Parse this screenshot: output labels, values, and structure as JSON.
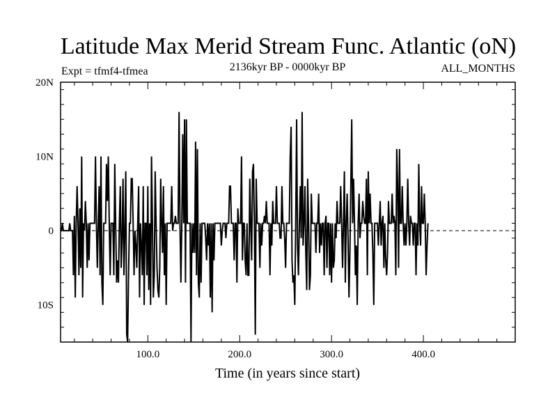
{
  "chart_data": {
    "type": "line",
    "title": "Latitude Max Merid Stream Func. Atlantic (oN)",
    "subtitle_left": "Expt = tfmf4-tfmea",
    "subtitle_center": "2136kyr BP - 0000kyr BP",
    "subtitle_right": "ALL_MONTHS",
    "xlabel": "Time (in years since start)",
    "ylabel": "",
    "xlim": [
      5,
      500
    ],
    "ylim": [
      -15,
      20
    ],
    "x_ticks": [
      {
        "value": 100,
        "label": "100.0"
      },
      {
        "value": 200,
        "label": "200.0"
      },
      {
        "value": 300,
        "label": "300.0"
      },
      {
        "value": 400,
        "label": "400.0"
      }
    ],
    "y_ticks": [
      {
        "value": 20,
        "label": "20N"
      },
      {
        "value": 10,
        "label": "10N"
      },
      {
        "value": 0,
        "label": "0"
      },
      {
        "value": -10,
        "label": "10S"
      }
    ],
    "zero_line": "dashed",
    "series": [
      {
        "color": "#000000",
        "x_start": 5,
        "x_step": 1,
        "values": [
          0,
          0,
          1,
          0,
          0,
          0,
          0,
          0,
          0,
          0,
          1,
          0,
          0,
          0,
          -6,
          2,
          -9,
          1,
          6,
          1,
          -6,
          3,
          -5,
          10,
          -9,
          1,
          0,
          4,
          1,
          -5,
          1,
          -4,
          1,
          1,
          1,
          1,
          1,
          1,
          10,
          1,
          -5,
          1,
          6,
          -6,
          10,
          -7,
          -10,
          1,
          1,
          1,
          9,
          4,
          10,
          1,
          -6,
          1,
          1,
          1,
          -6,
          9,
          1,
          -7,
          -4,
          -7,
          1,
          6,
          -5,
          -1,
          7,
          -6,
          0,
          8,
          -14,
          -16,
          -6,
          1,
          1,
          7,
          7,
          1,
          -6,
          0,
          -2,
          -5,
          1,
          6,
          -9,
          1,
          -2,
          -6,
          6,
          -10,
          1,
          1,
          -6,
          6,
          -8,
          1,
          -10,
          10,
          1,
          -9,
          -6,
          8,
          1,
          -5,
          -8,
          -9,
          -5,
          7,
          1,
          -3,
          6,
          -6,
          1,
          -10,
          1,
          1,
          1,
          1,
          1,
          6,
          0,
          1,
          1,
          2,
          1,
          1,
          1,
          16,
          1,
          -7,
          1,
          13,
          1,
          15,
          -7,
          15,
          1,
          1,
          1,
          1,
          -15,
          1,
          -3,
          1,
          -3,
          12,
          -6,
          11,
          -7,
          -9,
          1,
          -7,
          1,
          1,
          1,
          1,
          -1,
          -4,
          1,
          -2,
          1,
          -9,
          1,
          -11,
          1,
          -4,
          1,
          1,
          1,
          1,
          1,
          1,
          1,
          -2,
          0,
          1,
          1,
          1,
          -1,
          1,
          1,
          1,
          6,
          6,
          1,
          1,
          1,
          -4,
          1,
          1,
          -7,
          3,
          1,
          1,
          1,
          10,
          -4,
          1,
          1,
          -4,
          -6,
          1,
          -6,
          -6,
          7,
          1,
          -4,
          8,
          9,
          1,
          -14,
          7,
          1,
          1,
          1,
          -5,
          1,
          -2,
          1,
          1,
          2,
          1,
          4,
          1,
          1,
          1,
          -6,
          1,
          -2,
          4,
          1,
          1,
          1,
          6,
          1,
          1,
          1,
          -1,
          -1,
          6,
          1,
          1,
          -1,
          -5,
          1,
          1,
          1,
          1,
          10,
          14,
          -4,
          -7,
          -6,
          -10,
          1,
          15,
          -2,
          -6,
          1,
          6,
          -1,
          16,
          -2,
          1,
          6,
          -3,
          -8,
          7,
          1,
          -8,
          -6,
          5,
          1,
          1,
          1,
          1,
          -3,
          1,
          1,
          5,
          -3,
          1,
          -2,
          1,
          1,
          -6,
          1,
          2,
          -5,
          1,
          1,
          -6,
          1,
          -7,
          1,
          -5,
          -4,
          1,
          -1,
          4,
          1,
          1,
          1,
          6,
          1,
          -5,
          1,
          8,
          -7,
          1,
          5,
          -1,
          -9,
          -3,
          6,
          15,
          1,
          7,
          1,
          -6,
          -2,
          -10,
          1,
          5,
          -1,
          1,
          1,
          4,
          2,
          1,
          1,
          7,
          -6,
          8,
          1,
          5,
          1,
          1,
          -3,
          -10,
          1,
          1,
          1,
          1,
          -2,
          1,
          4,
          -2,
          1,
          2,
          -5,
          1,
          -4,
          -6,
          -3,
          4,
          1,
          1,
          1,
          5,
          1,
          2,
          1,
          -6,
          11,
          6,
          -5,
          11,
          1,
          1,
          6,
          1,
          -2,
          1,
          -2,
          1,
          7,
          1,
          -2,
          2,
          1,
          1,
          -2,
          1,
          1,
          -6,
          1,
          -2,
          9,
          1,
          -2,
          6,
          1,
          1,
          5,
          1,
          -6,
          -2,
          1
        ],
        "value_note": "one reading per year; piecewise signal read from the plot"
      }
    ]
  }
}
